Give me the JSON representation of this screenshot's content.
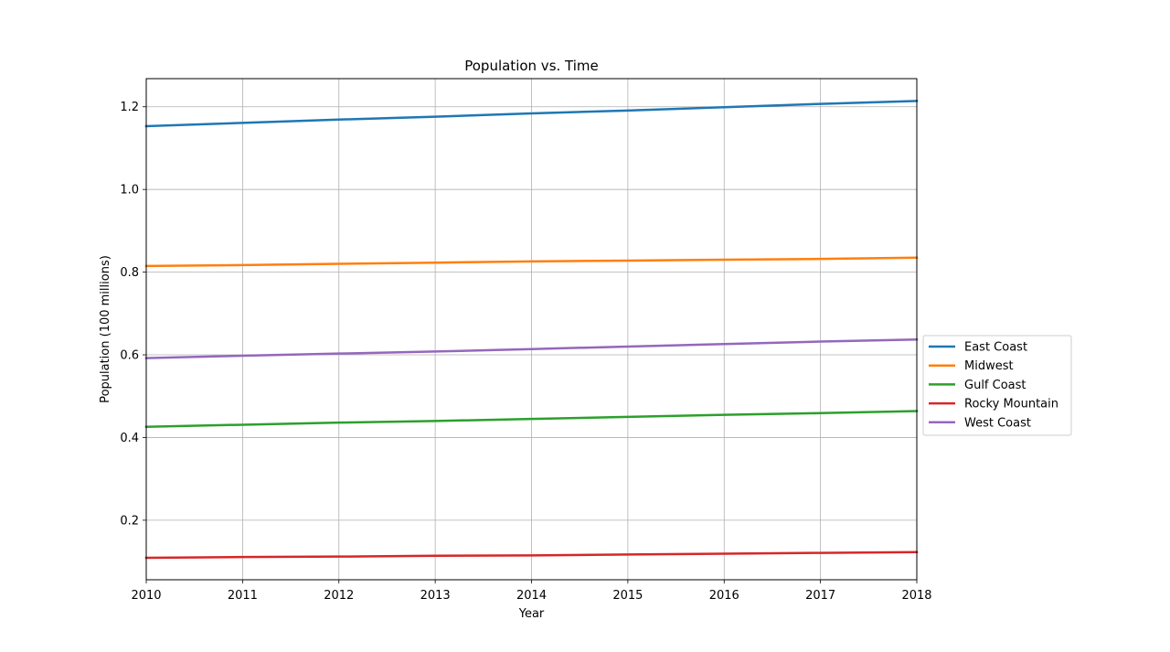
{
  "chart_data": {
    "type": "line",
    "title": "Population vs. Time",
    "xlabel": "Year",
    "ylabel": "Population (100 millions)",
    "x": [
      2010,
      2011,
      2012,
      2013,
      2014,
      2015,
      2016,
      2017,
      2018
    ],
    "xlim": [
      2010,
      2018
    ],
    "ylim": [
      0.056,
      1.268
    ],
    "xticks": [
      "2010",
      "2011",
      "2012",
      "2013",
      "2014",
      "2015",
      "2016",
      "2017",
      "2018"
    ],
    "yticks": [
      "0.2",
      "0.4",
      "0.6",
      "0.8",
      "1.0",
      "1.2"
    ],
    "grid": true,
    "legend_position": "center-right-outside",
    "series": [
      {
        "name": "East Coast",
        "color": "#1f77b4",
        "values": [
          1.153,
          1.161,
          1.169,
          1.176,
          1.184,
          1.191,
          1.199,
          1.207,
          1.214
        ]
      },
      {
        "name": "Midwest",
        "color": "#ff7f0e",
        "values": [
          0.815,
          0.817,
          0.82,
          0.823,
          0.826,
          0.828,
          0.83,
          0.832,
          0.835
        ]
      },
      {
        "name": "Gulf Coast",
        "color": "#2ca02c",
        "values": [
          0.426,
          0.431,
          0.436,
          0.44,
          0.445,
          0.45,
          0.455,
          0.459,
          0.464
        ]
      },
      {
        "name": "Rocky Mountain",
        "color": "#d62728",
        "values": [
          0.109,
          0.111,
          0.112,
          0.114,
          0.115,
          0.117,
          0.119,
          0.121,
          0.123
        ]
      },
      {
        "name": "West Coast",
        "color": "#9467bd",
        "values": [
          0.592,
          0.598,
          0.603,
          0.608,
          0.614,
          0.62,
          0.626,
          0.632,
          0.637
        ]
      }
    ]
  }
}
